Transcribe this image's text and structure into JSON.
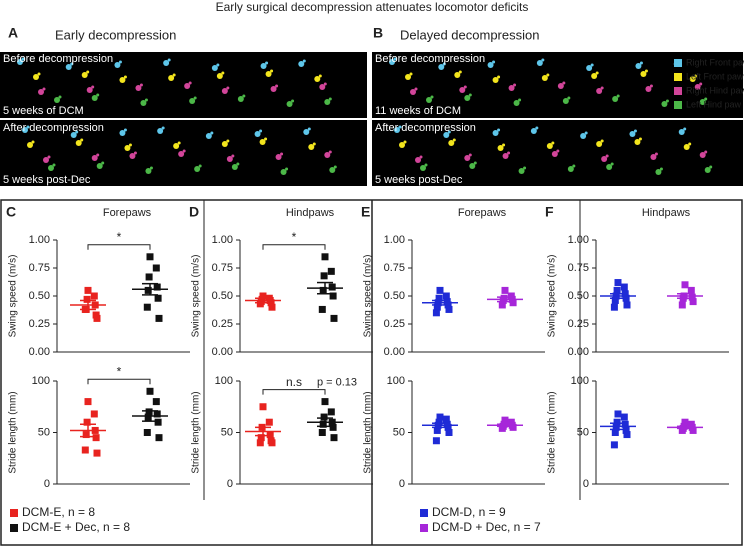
{
  "figure": {
    "title": "Early surgical decompression attenuates locomotor deficits",
    "panels": [
      {
        "label": "A",
        "title": "Early decompression",
        "captions": [
          "Before decompression",
          "5 weeks of DCM",
          "After decompression",
          "5 weeks post-Dec"
        ]
      },
      {
        "label": "B",
        "title": "Delayed decompression",
        "captions": [
          "Before decompression",
          "11 weeks of DCM",
          "After decompression",
          "5 weeks post-Dec"
        ],
        "legend": [
          {
            "name": "Right Front paw",
            "color": "#5ec6ea"
          },
          {
            "name": "Left Front paw",
            "color": "#f3e51d"
          },
          {
            "name": "Right Hind paw",
            "color": "#d2459a"
          },
          {
            "name": "Left Hind paw",
            "color": "#4cb848"
          }
        ]
      }
    ],
    "chart_panels": [
      "C",
      "D",
      "E",
      "F"
    ],
    "legends": [
      [
        {
          "name": "DCM-E, n = 8",
          "color": "#e8231f"
        },
        {
          "name": "DCM-E + Dec, n = 8",
          "color": "#111111"
        }
      ],
      [
        {
          "name": "DCM-D, n = 9",
          "color": "#1f2bd6"
        },
        {
          "name": "DCM-D + Dec, n = 7",
          "color": "#a626d9"
        }
      ]
    ]
  },
  "chart_data": [
    {
      "type": "strip",
      "title": "Forepaws",
      "ylabel": "Swing speed (m/s)",
      "ylim": [
        0,
        1
      ],
      "yticks": [
        {
          "value": 0,
          "label": "0.00"
        },
        {
          "value": 0.25,
          "label": "0.25"
        },
        {
          "value": 0.5,
          "label": "0.50"
        },
        {
          "value": 0.75,
          "label": "0.75"
        },
        {
          "value": 1,
          "label": "1.00"
        }
      ],
      "series": [
        {
          "color": "#e8231f",
          "values": [
            0.55,
            0.5,
            0.47,
            0.42,
            0.38,
            0.33,
            0.38,
            0.3
          ],
          "mean": 0.42,
          "sem": 0.04
        },
        {
          "color": "#111111",
          "values": [
            0.85,
            0.75,
            0.67,
            0.58,
            0.55,
            0.48,
            0.4,
            0.3
          ],
          "mean": 0.56,
          "sem": 0.05
        }
      ],
      "annotations": [
        "*"
      ]
    },
    {
      "type": "strip",
      "ylabel": "Stride length (mm)",
      "ylim": [
        0,
        100
      ],
      "yticks": [
        0,
        50,
        100
      ],
      "series": [
        {
          "color": "#e8231f",
          "values": [
            80,
            68,
            60,
            52,
            48,
            45,
            33,
            30
          ],
          "mean": 52,
          "sem": 6
        },
        {
          "color": "#111111",
          "values": [
            90,
            80,
            70,
            68,
            65,
            60,
            50,
            45
          ],
          "mean": 66,
          "sem": 5
        }
      ],
      "annotations": [
        "*"
      ]
    },
    {
      "type": "strip",
      "title": "Hindpaws",
      "ylabel": "Swing speed (m/s)",
      "ylim": [
        0,
        1
      ],
      "yticks": [
        {
          "value": 0,
          "label": "0.00"
        },
        {
          "value": 0.25,
          "label": "0.25"
        },
        {
          "value": 0.5,
          "label": "0.50"
        },
        {
          "value": 0.75,
          "label": "0.75"
        },
        {
          "value": 1,
          "label": "1.00"
        }
      ],
      "series": [
        {
          "color": "#e8231f",
          "values": [
            0.5,
            0.48,
            0.47,
            0.46,
            0.45,
            0.44,
            0.43,
            0.4
          ],
          "mean": 0.46,
          "sem": 0.02
        },
        {
          "color": "#111111",
          "values": [
            0.85,
            0.72,
            0.68,
            0.58,
            0.55,
            0.5,
            0.38,
            0.3
          ],
          "mean": 0.57,
          "sem": 0.05
        }
      ],
      "annotations": [
        "*"
      ]
    },
    {
      "type": "strip",
      "ylabel": "Stride length (mm)",
      "ylim": [
        0,
        100
      ],
      "yticks": [
        0,
        50,
        100
      ],
      "series": [
        {
          "color": "#e8231f",
          "values": [
            75,
            60,
            55,
            48,
            45,
            42,
            40,
            40
          ],
          "mean": 51,
          "sem": 4
        },
        {
          "color": "#111111",
          "values": [
            80,
            70,
            65,
            60,
            58,
            55,
            50,
            45
          ],
          "mean": 60,
          "sem": 4
        }
      ],
      "annotations": [
        "n.s",
        "p = 0.13"
      ]
    },
    {
      "type": "strip",
      "title": "Forepaws",
      "ylabel": "Swing speed (m/s)",
      "ylim": [
        0,
        1
      ],
      "yticks": [
        {
          "value": 0,
          "label": "0.00"
        },
        {
          "value": 0.25,
          "label": "0.25"
        },
        {
          "value": 0.5,
          "label": "0.50"
        },
        {
          "value": 0.75,
          "label": "0.75"
        },
        {
          "value": 1,
          "label": "1.00"
        }
      ],
      "series": [
        {
          "color": "#1f2bd6",
          "values": [
            0.55,
            0.5,
            0.48,
            0.45,
            0.44,
            0.42,
            0.4,
            0.38,
            0.35
          ],
          "mean": 0.44,
          "sem": 0.02
        },
        {
          "color": "#a626d9",
          "values": [
            0.55,
            0.5,
            0.48,
            0.47,
            0.46,
            0.44,
            0.42
          ],
          "mean": 0.47,
          "sem": 0.02
        }
      ]
    },
    {
      "type": "strip",
      "ylabel": "Stride length (mm)",
      "ylim": [
        0,
        100
      ],
      "yticks": [
        0,
        50,
        100
      ],
      "series": [
        {
          "color": "#1f2bd6",
          "values": [
            65,
            63,
            60,
            58,
            57,
            55,
            52,
            50,
            42
          ],
          "mean": 57,
          "sem": 2
        },
        {
          "color": "#a626d9",
          "values": [
            62,
            60,
            58,
            57,
            56,
            55,
            54
          ],
          "mean": 57,
          "sem": 1
        }
      ]
    },
    {
      "type": "strip",
      "title": "Hindpaws",
      "ylabel": "Swing speed (m/s)",
      "ylim": [
        0,
        1
      ],
      "yticks": [
        {
          "value": 0,
          "label": "0.00"
        },
        {
          "value": 0.25,
          "label": "0.25"
        },
        {
          "value": 0.5,
          "label": "0.50"
        },
        {
          "value": 0.75,
          "label": "0.75"
        },
        {
          "value": 1,
          "label": "1.00"
        }
      ],
      "series": [
        {
          "color": "#1f2bd6",
          "values": [
            0.62,
            0.58,
            0.55,
            0.52,
            0.5,
            0.48,
            0.46,
            0.42,
            0.4
          ],
          "mean": 0.5,
          "sem": 0.02
        },
        {
          "color": "#a626d9",
          "values": [
            0.6,
            0.55,
            0.5,
            0.49,
            0.48,
            0.45,
            0.42
          ],
          "mean": 0.5,
          "sem": 0.02
        }
      ]
    },
    {
      "type": "strip",
      "ylabel": "Stride length (mm)",
      "ylim": [
        0,
        100
      ],
      "yticks": [
        0,
        50,
        100
      ],
      "series": [
        {
          "color": "#1f2bd6",
          "values": [
            68,
            65,
            60,
            58,
            55,
            52,
            50,
            48,
            38
          ],
          "mean": 56,
          "sem": 3
        },
        {
          "color": "#a626d9",
          "values": [
            60,
            58,
            56,
            55,
            54,
            52,
            52
          ],
          "mean": 55,
          "sem": 1
        }
      ]
    }
  ]
}
